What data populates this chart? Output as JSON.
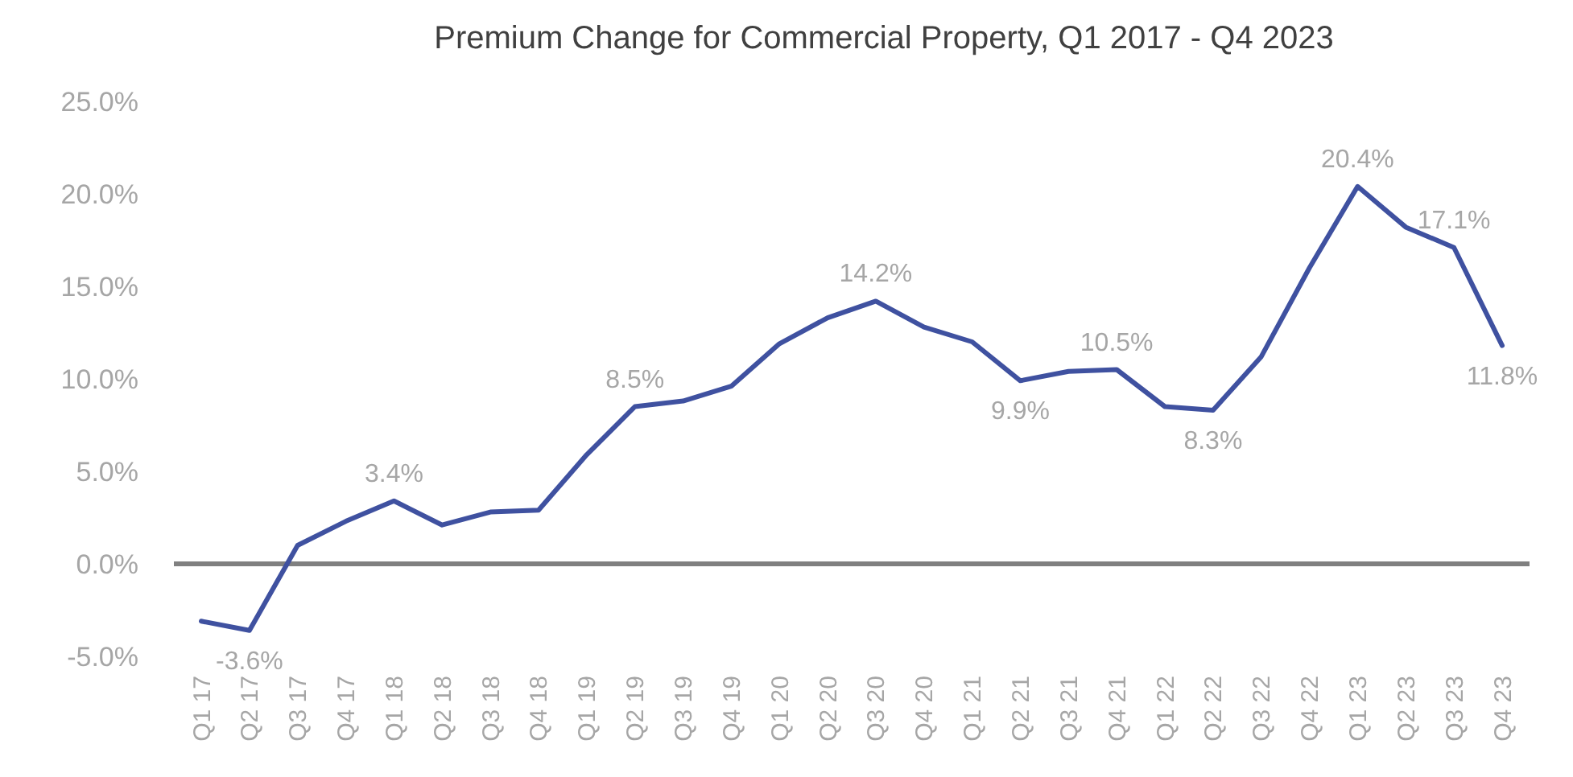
{
  "chart_data": {
    "type": "line",
    "title": "Premium Change for Commercial Property, Q1 2017 - Q4 2023",
    "categories": [
      "Q1 17",
      "Q2 17",
      "Q3 17",
      "Q4 17",
      "Q1 18",
      "Q2 18",
      "Q3 18",
      "Q4 18",
      "Q1 19",
      "Q2 19",
      "Q3 19",
      "Q4 19",
      "Q1 20",
      "Q2 20",
      "Q3 20",
      "Q4 20",
      "Q1 21",
      "Q2 21",
      "Q3 21",
      "Q4 21",
      "Q1 22",
      "Q2 22",
      "Q3 22",
      "Q4 22",
      "Q1 23",
      "Q2 23",
      "Q3 23",
      "Q4 23"
    ],
    "series": [
      {
        "color": "#3f51a0",
        "values": [
          -3.1,
          -3.6,
          1.0,
          2.3,
          3.4,
          2.1,
          2.8,
          2.9,
          5.9,
          8.5,
          8.8,
          9.6,
          11.9,
          13.3,
          14.2,
          12.8,
          12.0,
          9.9,
          10.4,
          10.5,
          8.5,
          8.3,
          11.2,
          16.0,
          20.4,
          18.2,
          17.1,
          11.8
        ],
        "value_labels": [
          null,
          "-3.6%",
          null,
          null,
          "3.4%",
          null,
          null,
          null,
          null,
          "8.5%",
          null,
          null,
          null,
          null,
          "14.2%",
          null,
          null,
          "9.9%",
          null,
          "10.5%",
          null,
          "8.3%",
          null,
          null,
          "20.4%",
          null,
          "17.1%",
          "11.8%"
        ]
      }
    ],
    "ylim": [
      -5,
      25
    ],
    "yticks": [
      {
        "value": -5,
        "label": "-5.0%"
      },
      {
        "value": 0,
        "label": "0.0%"
      },
      {
        "value": 5,
        "label": "5.0%"
      },
      {
        "value": 10,
        "label": "10.0%"
      },
      {
        "value": 15,
        "label": "15.0%"
      },
      {
        "value": 20,
        "label": "20.0%"
      },
      {
        "value": 25,
        "label": "25.0%"
      }
    ],
    "ref_lines": [
      {
        "axis": "y",
        "value": 0,
        "color": "#808080"
      }
    ],
    "marker": "none",
    "line_style": "solid"
  }
}
